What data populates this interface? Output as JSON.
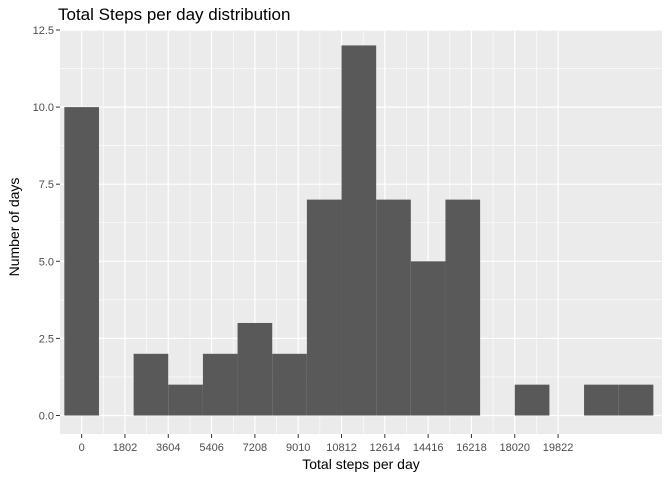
{
  "chart_data": {
    "type": "bar",
    "title": "Total Steps per day distribution",
    "xlabel": "Total steps per day",
    "ylabel": "Number of days",
    "x_ticks": [
      0,
      1802,
      3604,
      5406,
      7208,
      9010,
      10812,
      12614,
      14416,
      16218,
      18020,
      19822
    ],
    "y_ticks": [
      0.0,
      2.5,
      5.0,
      7.5,
      10.0,
      12.5
    ],
    "y_tick_labels": [
      "0.0",
      "2.5",
      "5.0",
      "7.5",
      "10.0",
      "12.5"
    ],
    "xlim": [
      -901,
      24146
    ],
    "ylim": [
      -0.6,
      12.5
    ],
    "bin_width": 1441.6,
    "bins": [
      {
        "center": 0,
        "count": 10
      },
      {
        "center": 1441.6,
        "count": 0
      },
      {
        "center": 2883.2,
        "count": 2
      },
      {
        "center": 4324.8,
        "count": 1
      },
      {
        "center": 5766.4,
        "count": 2
      },
      {
        "center": 7208,
        "count": 3
      },
      {
        "center": 8649.6,
        "count": 2
      },
      {
        "center": 10091.2,
        "count": 7
      },
      {
        "center": 11532.8,
        "count": 12
      },
      {
        "center": 12974.4,
        "count": 7
      },
      {
        "center": 14416,
        "count": 5
      },
      {
        "center": 15857.6,
        "count": 7
      },
      {
        "center": 17299.2,
        "count": 0
      },
      {
        "center": 18740.8,
        "count": 1
      },
      {
        "center": 20182.4,
        "count": 0
      },
      {
        "center": 21624,
        "count": 1
      },
      {
        "center": 23065.6,
        "count": 1
      }
    ],
    "grid": true,
    "colors": {
      "panel": "#ebebeb",
      "bar": "#595959",
      "grid": "#ffffff",
      "axis_text": "#4d4d4d"
    }
  }
}
